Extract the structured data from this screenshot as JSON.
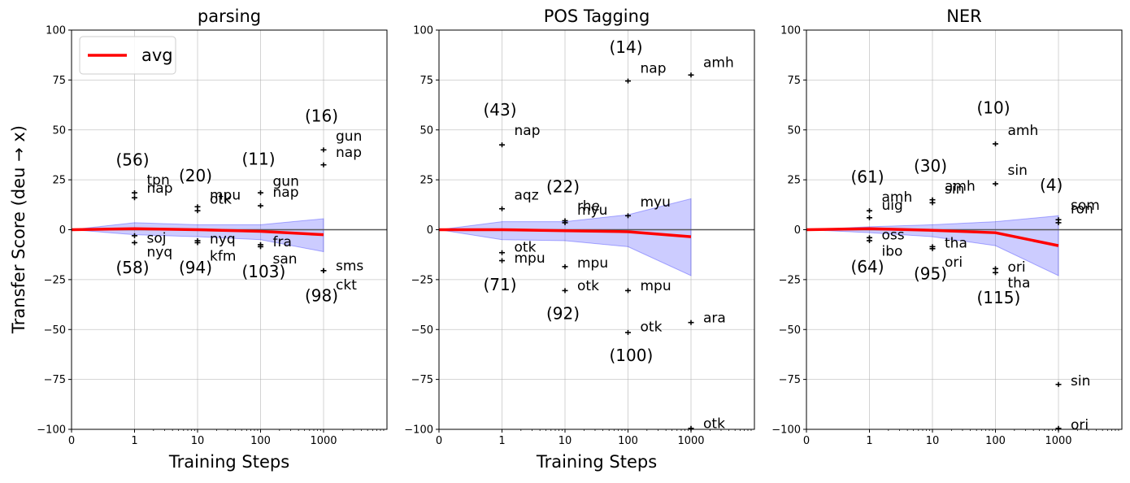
{
  "chart_data": [
    {
      "type": "line",
      "title": "parsing",
      "xlabel": "Training Steps",
      "ylabel": "Transfer Score (deu → x)",
      "ylim": [
        -100,
        100
      ],
      "x_ticks": [
        "0",
        "1",
        "10",
        "100",
        "1000"
      ],
      "y_ticks": [
        "100",
        "75",
        "50",
        "25",
        "0",
        "−25",
        "−50",
        "−75",
        "−100"
      ],
      "grid": true,
      "legend": {
        "position": "top-left",
        "entries": [
          {
            "label": "avg",
            "color": "#ff0000"
          }
        ]
      },
      "avg": {
        "x": [
          0,
          1,
          10,
          100,
          1000
        ],
        "y": [
          0,
          0.5,
          0,
          -0.8,
          -2.5
        ]
      },
      "band": {
        "x": [
          0,
          1,
          10,
          100,
          1000
        ],
        "upper": [
          0,
          3.5,
          2.5,
          2.5,
          5.5
        ],
        "lower": [
          0,
          -2.5,
          -3.5,
          -5,
          -11
        ]
      },
      "points": [
        {
          "x": 1,
          "y": 18.5
        },
        {
          "x": 1,
          "y": 16
        },
        {
          "x": 1,
          "y": -3
        },
        {
          "x": 1,
          "y": -6.5
        },
        {
          "x": 10,
          "y": 11.5
        },
        {
          "x": 10,
          "y": 9.5
        },
        {
          "x": 10,
          "y": -5.5
        },
        {
          "x": 10,
          "y": -6.5
        },
        {
          "x": 100,
          "y": 18.5
        },
        {
          "x": 100,
          "y": 12
        },
        {
          "x": 100,
          "y": -7.5
        },
        {
          "x": 100,
          "y": -8.5
        },
        {
          "x": 1000,
          "y": 40
        },
        {
          "x": 1000,
          "y": 32.5
        },
        {
          "x": 1000,
          "y": -20.5
        },
        {
          "x": 1000,
          "y": -20.5
        }
      ],
      "annotations": [
        {
          "x": 1,
          "y": 25,
          "text": "tpn",
          "kind": "lang"
        },
        {
          "x": 1,
          "y": 21,
          "text": "nap",
          "kind": "lang"
        },
        {
          "x": 1,
          "y": -4,
          "text": "soj",
          "kind": "lang"
        },
        {
          "x": 1,
          "y": -11,
          "text": "nyq",
          "kind": "lang"
        },
        {
          "x": 1,
          "y": 35,
          "text": "(56)",
          "kind": "count"
        },
        {
          "x": 1,
          "y": -19,
          "text": "(58)",
          "kind": "count"
        },
        {
          "x": 10,
          "y": 17.5,
          "text": "mpu",
          "kind": "lang"
        },
        {
          "x": 10,
          "y": 15.5,
          "text": "otk",
          "kind": "lang"
        },
        {
          "x": 10,
          "y": -4.5,
          "text": "nyq",
          "kind": "lang"
        },
        {
          "x": 10,
          "y": -13,
          "text": "kfm",
          "kind": "lang"
        },
        {
          "x": 10,
          "y": 27,
          "text": "(20)",
          "kind": "count"
        },
        {
          "x": 10,
          "y": -19,
          "text": "(94)",
          "kind": "count"
        },
        {
          "x": 100,
          "y": 24.5,
          "text": "gun",
          "kind": "lang"
        },
        {
          "x": 100,
          "y": 19,
          "text": "nap",
          "kind": "lang"
        },
        {
          "x": 100,
          "y": -6,
          "text": "fra",
          "kind": "lang"
        },
        {
          "x": 100,
          "y": -14.5,
          "text": "san",
          "kind": "lang"
        },
        {
          "x": 100,
          "y": 35.5,
          "text": "(11)",
          "kind": "count"
        },
        {
          "x": 100,
          "y": -21,
          "text": "(103)",
          "kind": "count"
        },
        {
          "x": 1000,
          "y": 47,
          "text": "gun",
          "kind": "lang"
        },
        {
          "x": 1000,
          "y": 39,
          "text": "nap",
          "kind": "lang"
        },
        {
          "x": 1000,
          "y": -18,
          "text": "sms",
          "kind": "lang"
        },
        {
          "x": 1000,
          "y": -27.5,
          "text": "ckt",
          "kind": "lang"
        },
        {
          "x": 1000,
          "y": 57,
          "text": "(16)",
          "kind": "count"
        },
        {
          "x": 1000,
          "y": -33,
          "text": "(98)",
          "kind": "count"
        }
      ]
    },
    {
      "type": "line",
      "title": "POS Tagging",
      "xlabel": "Training Steps",
      "ylabel": "",
      "ylim": [
        -100,
        100
      ],
      "x_ticks": [
        "0",
        "1",
        "10",
        "100",
        "1000"
      ],
      "y_ticks": [
        "100",
        "75",
        "50",
        "25",
        "0",
        "−25",
        "−50",
        "−75",
        "−100"
      ],
      "grid": true,
      "avg": {
        "x": [
          0,
          1,
          10,
          100,
          1000
        ],
        "y": [
          0,
          0,
          -0.5,
          -1,
          -3.5
        ]
      },
      "band": {
        "x": [
          0,
          1,
          10,
          100,
          1000
        ],
        "upper": [
          0,
          4,
          4,
          7.5,
          15.5
        ],
        "lower": [
          0,
          -5,
          -5.5,
          -8.5,
          -23
        ]
      },
      "points": [
        {
          "x": 1,
          "y": 42.5
        },
        {
          "x": 1,
          "y": 10.5
        },
        {
          "x": 1,
          "y": -11.5
        },
        {
          "x": 1,
          "y": -15.5
        },
        {
          "x": 10,
          "y": 4.5
        },
        {
          "x": 10,
          "y": 3.5
        },
        {
          "x": 10,
          "y": -18.5
        },
        {
          "x": 10,
          "y": -30.5
        },
        {
          "x": 100,
          "y": 74.5
        },
        {
          "x": 100,
          "y": 7
        },
        {
          "x": 100,
          "y": -30.5
        },
        {
          "x": 100,
          "y": -51.5
        },
        {
          "x": 1000,
          "y": 77.5
        },
        {
          "x": 1000,
          "y": -46.5
        },
        {
          "x": 1000,
          "y": -99.5
        }
      ],
      "annotations": [
        {
          "x": 1,
          "y": 50,
          "text": "nap",
          "kind": "lang"
        },
        {
          "x": 1,
          "y": 17.5,
          "text": "aqz",
          "kind": "lang"
        },
        {
          "x": 1,
          "y": -8.5,
          "text": "otk",
          "kind": "lang"
        },
        {
          "x": 1,
          "y": -14,
          "text": "mpu",
          "kind": "lang"
        },
        {
          "x": 1,
          "y": 60,
          "text": "(43)",
          "kind": "count"
        },
        {
          "x": 1,
          "y": -27.5,
          "text": "(71)",
          "kind": "count"
        },
        {
          "x": 10,
          "y": 12,
          "text": "rhe",
          "kind": "lang"
        },
        {
          "x": 10,
          "y": 10,
          "text": "myu",
          "kind": "lang"
        },
        {
          "x": 10,
          "y": -16.5,
          "text": "mpu",
          "kind": "lang"
        },
        {
          "x": 10,
          "y": -28,
          "text": "otk",
          "kind": "lang"
        },
        {
          "x": 10,
          "y": 21.5,
          "text": "(22)",
          "kind": "count"
        },
        {
          "x": 10,
          "y": -42,
          "text": "(92)",
          "kind": "count"
        },
        {
          "x": 100,
          "y": 81,
          "text": "nap",
          "kind": "lang"
        },
        {
          "x": 100,
          "y": 14,
          "text": "myu",
          "kind": "lang"
        },
        {
          "x": 100,
          "y": -28,
          "text": "mpu",
          "kind": "lang"
        },
        {
          "x": 100,
          "y": -48.5,
          "text": "otk",
          "kind": "lang"
        },
        {
          "x": 100,
          "y": 91.5,
          "text": "(14)",
          "kind": "count"
        },
        {
          "x": 100,
          "y": -63,
          "text": "(100)",
          "kind": "count"
        },
        {
          "x": 1000,
          "y": 84,
          "text": "amh",
          "kind": "lang"
        },
        {
          "x": 1000,
          "y": -44,
          "text": "ara",
          "kind": "lang"
        },
        {
          "x": 1000,
          "y": -97,
          "text": "otk",
          "kind": "lang"
        }
      ]
    },
    {
      "type": "line",
      "title": "NER",
      "xlabel": "",
      "ylabel": "",
      "ylim": [
        -100,
        100
      ],
      "x_ticks": [
        "0",
        "1",
        "10",
        "100",
        "1000"
      ],
      "y_ticks": [
        "100",
        "75",
        "50",
        "25",
        "0",
        "−25",
        "−50",
        "−75",
        "−100"
      ],
      "grid": true,
      "avg": {
        "x": [
          0,
          1,
          10,
          100,
          1000
        ],
        "y": [
          0,
          0.5,
          -0.3,
          -1.5,
          -8
        ]
      },
      "band": {
        "x": [
          0,
          1,
          10,
          100,
          1000
        ],
        "upper": [
          0,
          1.5,
          2.5,
          4,
          7
        ]
      },
      "band_lower": [
        0,
        -1.5,
        -3.5,
        -8,
        -23
      ],
      "points": [
        {
          "x": 1,
          "y": 9.5
        },
        {
          "x": 1,
          "y": 6
        },
        {
          "x": 1,
          "y": -4
        },
        {
          "x": 1,
          "y": -5.5
        },
        {
          "x": 10,
          "y": 15
        },
        {
          "x": 10,
          "y": 13.5
        },
        {
          "x": 10,
          "y": -8.5
        },
        {
          "x": 10,
          "y": -9.5
        },
        {
          "x": 100,
          "y": 43
        },
        {
          "x": 100,
          "y": 23
        },
        {
          "x": 100,
          "y": -19.5
        },
        {
          "x": 100,
          "y": -21.5
        },
        {
          "x": 1000,
          "y": 5
        },
        {
          "x": 1000,
          "y": 3.5
        },
        {
          "x": 1000,
          "y": -77.5
        },
        {
          "x": 1000,
          "y": -99.5
        }
      ],
      "annotations": [
        {
          "x": 1,
          "y": 16.5,
          "text": "amh",
          "kind": "lang"
        },
        {
          "x": 1,
          "y": 12.5,
          "text": "uig",
          "kind": "lang"
        },
        {
          "x": 1,
          "y": -2.5,
          "text": "oss",
          "kind": "lang"
        },
        {
          "x": 1,
          "y": -10.5,
          "text": "ibo",
          "kind": "lang"
        },
        {
          "x": 1,
          "y": 26.5,
          "text": "(61)",
          "kind": "count"
        },
        {
          "x": 1,
          "y": -18.5,
          "text": "(64)",
          "kind": "count"
        },
        {
          "x": 10,
          "y": 22,
          "text": "amh",
          "kind": "lang"
        },
        {
          "x": 10,
          "y": 20.5,
          "text": "sin",
          "kind": "lang"
        },
        {
          "x": 10,
          "y": -6.5,
          "text": "tha",
          "kind": "lang"
        },
        {
          "x": 10,
          "y": -16,
          "text": "ori",
          "kind": "lang"
        },
        {
          "x": 10,
          "y": 32,
          "text": "(30)",
          "kind": "count"
        },
        {
          "x": 10,
          "y": -22,
          "text": "(95)",
          "kind": "count"
        },
        {
          "x": 100,
          "y": 50,
          "text": "amh",
          "kind": "lang"
        },
        {
          "x": 100,
          "y": 30,
          "text": "sin",
          "kind": "lang"
        },
        {
          "x": 100,
          "y": -18.5,
          "text": "ori",
          "kind": "lang"
        },
        {
          "x": 100,
          "y": -26.5,
          "text": "tha",
          "kind": "lang"
        },
        {
          "x": 100,
          "y": 61,
          "text": "(10)",
          "kind": "count"
        },
        {
          "x": 100,
          "y": -34,
          "text": "(115)",
          "kind": "count"
        },
        {
          "x": 1000,
          "y": 12.5,
          "text": "som",
          "kind": "lang"
        },
        {
          "x": 1000,
          "y": 10.5,
          "text": "ron",
          "kind": "lang"
        },
        {
          "x": 1000,
          "y": -75.5,
          "text": "sin",
          "kind": "lang"
        },
        {
          "x": 1000,
          "y": -97.5,
          "text": "ori",
          "kind": "lang"
        },
        {
          "x": 1000,
          "y": 22.5,
          "text": "(4)",
          "kind": "count"
        }
      ]
    }
  ]
}
